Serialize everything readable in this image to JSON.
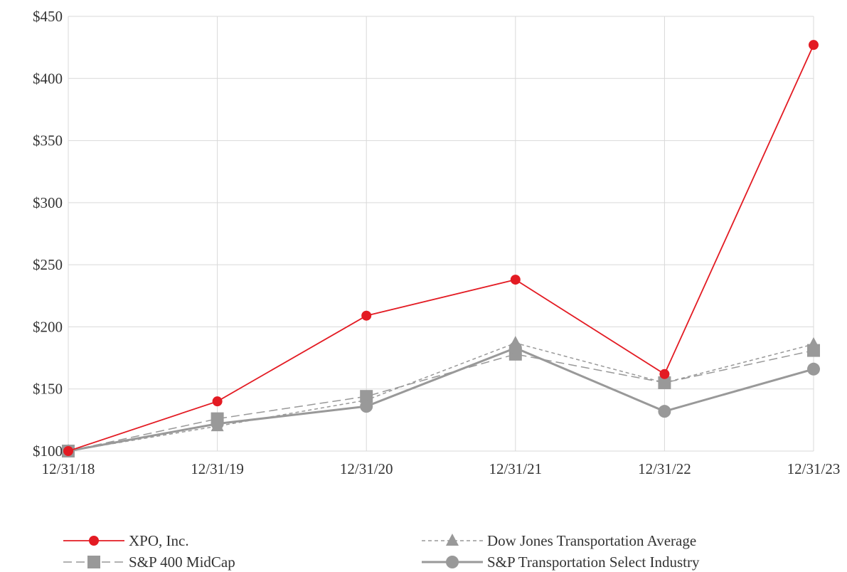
{
  "chart_data": {
    "type": "line",
    "title": "",
    "xlabel": "",
    "ylabel": "",
    "categories": [
      "12/31/18",
      "12/31/19",
      "12/31/20",
      "12/31/21",
      "12/31/22",
      "12/31/23"
    ],
    "ylim": [
      100,
      450
    ],
    "yticks": [
      100,
      150,
      200,
      250,
      300,
      350,
      400,
      450
    ],
    "ytick_labels": [
      "$100",
      "$150",
      "$200",
      "$250",
      "$300",
      "$350",
      "$400",
      "$450"
    ],
    "grid": true,
    "legend_position": "bottom",
    "series": [
      {
        "name": "XPO, Inc.",
        "values": [
          100,
          140,
          209,
          238,
          162,
          427
        ],
        "color": "#e31b23",
        "style": "solid",
        "marker": "circle"
      },
      {
        "name": "Dow Jones Transportation Average",
        "values": [
          100,
          120,
          141,
          187,
          155,
          186
        ],
        "color": "#999999",
        "style": "dotted",
        "marker": "triangle"
      },
      {
        "name": "S&P 400 MidCap",
        "values": [
          100,
          126,
          144,
          178,
          155,
          181
        ],
        "color": "#999999",
        "style": "dashed",
        "marker": "square"
      },
      {
        "name": "S&P Transportation Select Industry",
        "values": [
          100,
          122,
          136,
          183,
          132,
          166
        ],
        "color": "#999999",
        "style": "solid-thick",
        "marker": "circle"
      }
    ]
  }
}
